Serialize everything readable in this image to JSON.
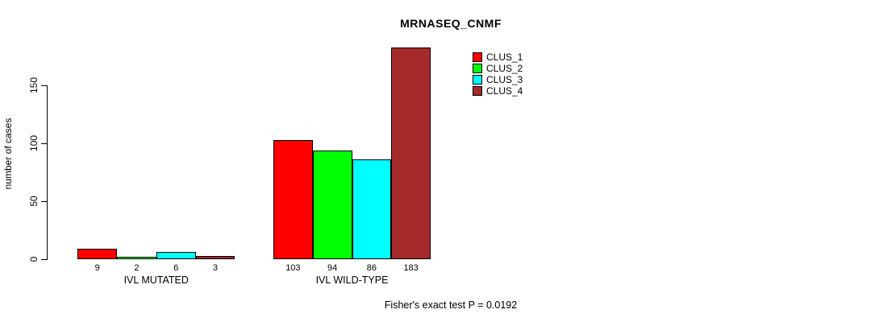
{
  "chart_data": {
    "type": "bar",
    "title": "MRNASEQ_CNMF",
    "ylabel": "number of cases",
    "ylim": [
      0,
      185
    ],
    "yticks": [
      0,
      50,
      100,
      150
    ],
    "grid": false,
    "legend_position": "top-right",
    "categories": [
      "IVL MUTATED",
      "IVL WILD-TYPE"
    ],
    "series": [
      {
        "name": "CLUS_1",
        "color": "#FF0000",
        "values": [
          9,
          103
        ]
      },
      {
        "name": "CLUS_2",
        "color": "#00FF00",
        "values": [
          2,
          94
        ]
      },
      {
        "name": "CLUS_3",
        "color": "#00FFFF",
        "values": [
          6,
          86
        ]
      },
      {
        "name": "CLUS_4",
        "color": "#A52A2A",
        "values": [
          3,
          183
        ]
      }
    ],
    "bar_value_labels": {
      "IVL MUTATED": [
        9,
        2,
        6,
        3
      ],
      "IVL WILD-TYPE": [
        103,
        94,
        86,
        183
      ]
    },
    "annotation": "Fisher's exact test P = 0.0192"
  }
}
